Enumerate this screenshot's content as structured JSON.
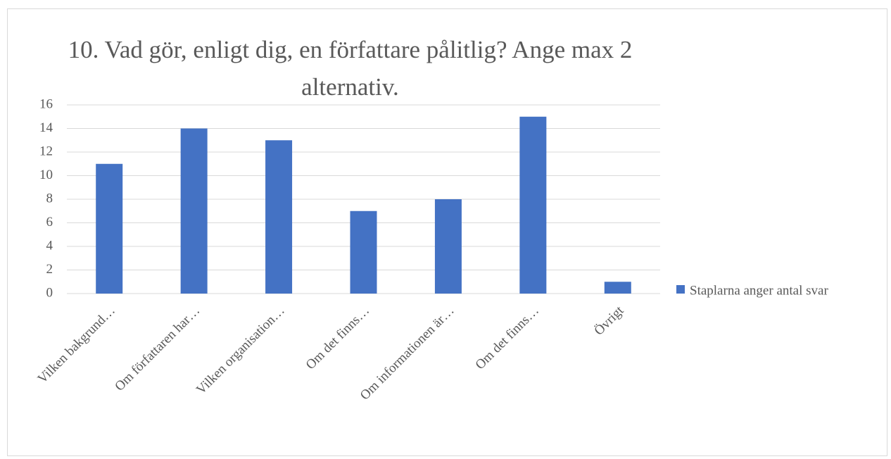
{
  "chart_data": {
    "type": "bar",
    "title": "10. Vad gör, enligt dig, en författare pålitlig? Ange max 2 alternativ.",
    "categories": [
      "Vilken bakgrund…",
      "Om författaren har…",
      "Vilken organisation…",
      "Om det finns…",
      "Om informationen är…",
      "Om det finns…",
      "Övrigt"
    ],
    "series": [
      {
        "name": "Staplarna anger antal svar",
        "color": "#4472c4",
        "values": [
          11,
          14,
          13,
          7,
          8,
          15,
          1
        ]
      }
    ],
    "ylim": [
      0,
      16
    ],
    "yticks": [
      0,
      2,
      4,
      6,
      8,
      10,
      12,
      14,
      16
    ],
    "grid": true,
    "legend": "right"
  }
}
